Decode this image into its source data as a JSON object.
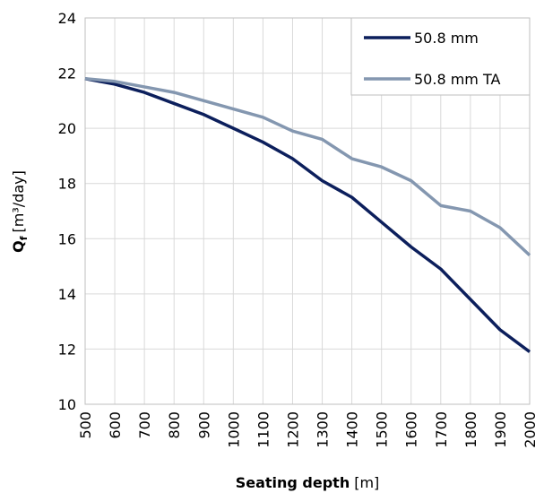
{
  "chart_data": {
    "type": "line",
    "x_label_bold": "Seating depth",
    "x_label_unit": "[m]",
    "y_label_bold": "Q",
    "y_label_sub": "f",
    "y_label_unit": "[m³/day]",
    "x": [
      500,
      600,
      700,
      800,
      900,
      1000,
      1100,
      1200,
      1300,
      1400,
      1500,
      1600,
      1700,
      1800,
      1900,
      2000
    ],
    "series": [
      {
        "name": "50.8 mm",
        "color": "#0c1f5c",
        "values": [
          21.8,
          21.6,
          21.3,
          20.9,
          20.5,
          20.0,
          19.5,
          18.9,
          18.1,
          17.5,
          16.6,
          15.7,
          14.9,
          13.8,
          12.7,
          11.9
        ]
      },
      {
        "name": "50.8 mm TA",
        "color": "#8497b0",
        "values": [
          21.8,
          21.7,
          21.5,
          21.3,
          21.0,
          20.7,
          20.4,
          19.9,
          19.6,
          18.9,
          18.6,
          18.1,
          17.2,
          17.0,
          16.4,
          15.4
        ]
      }
    ],
    "xlim": [
      500,
      2000
    ],
    "xticks": [
      500,
      600,
      700,
      800,
      900,
      1000,
      1100,
      1200,
      1300,
      1400,
      1500,
      1600,
      1700,
      1800,
      1900,
      2000
    ],
    "ylim": [
      10,
      24
    ],
    "yticks": [
      10,
      12,
      14,
      16,
      18,
      20,
      22,
      24
    ],
    "grid": true,
    "legend": "upper right"
  }
}
